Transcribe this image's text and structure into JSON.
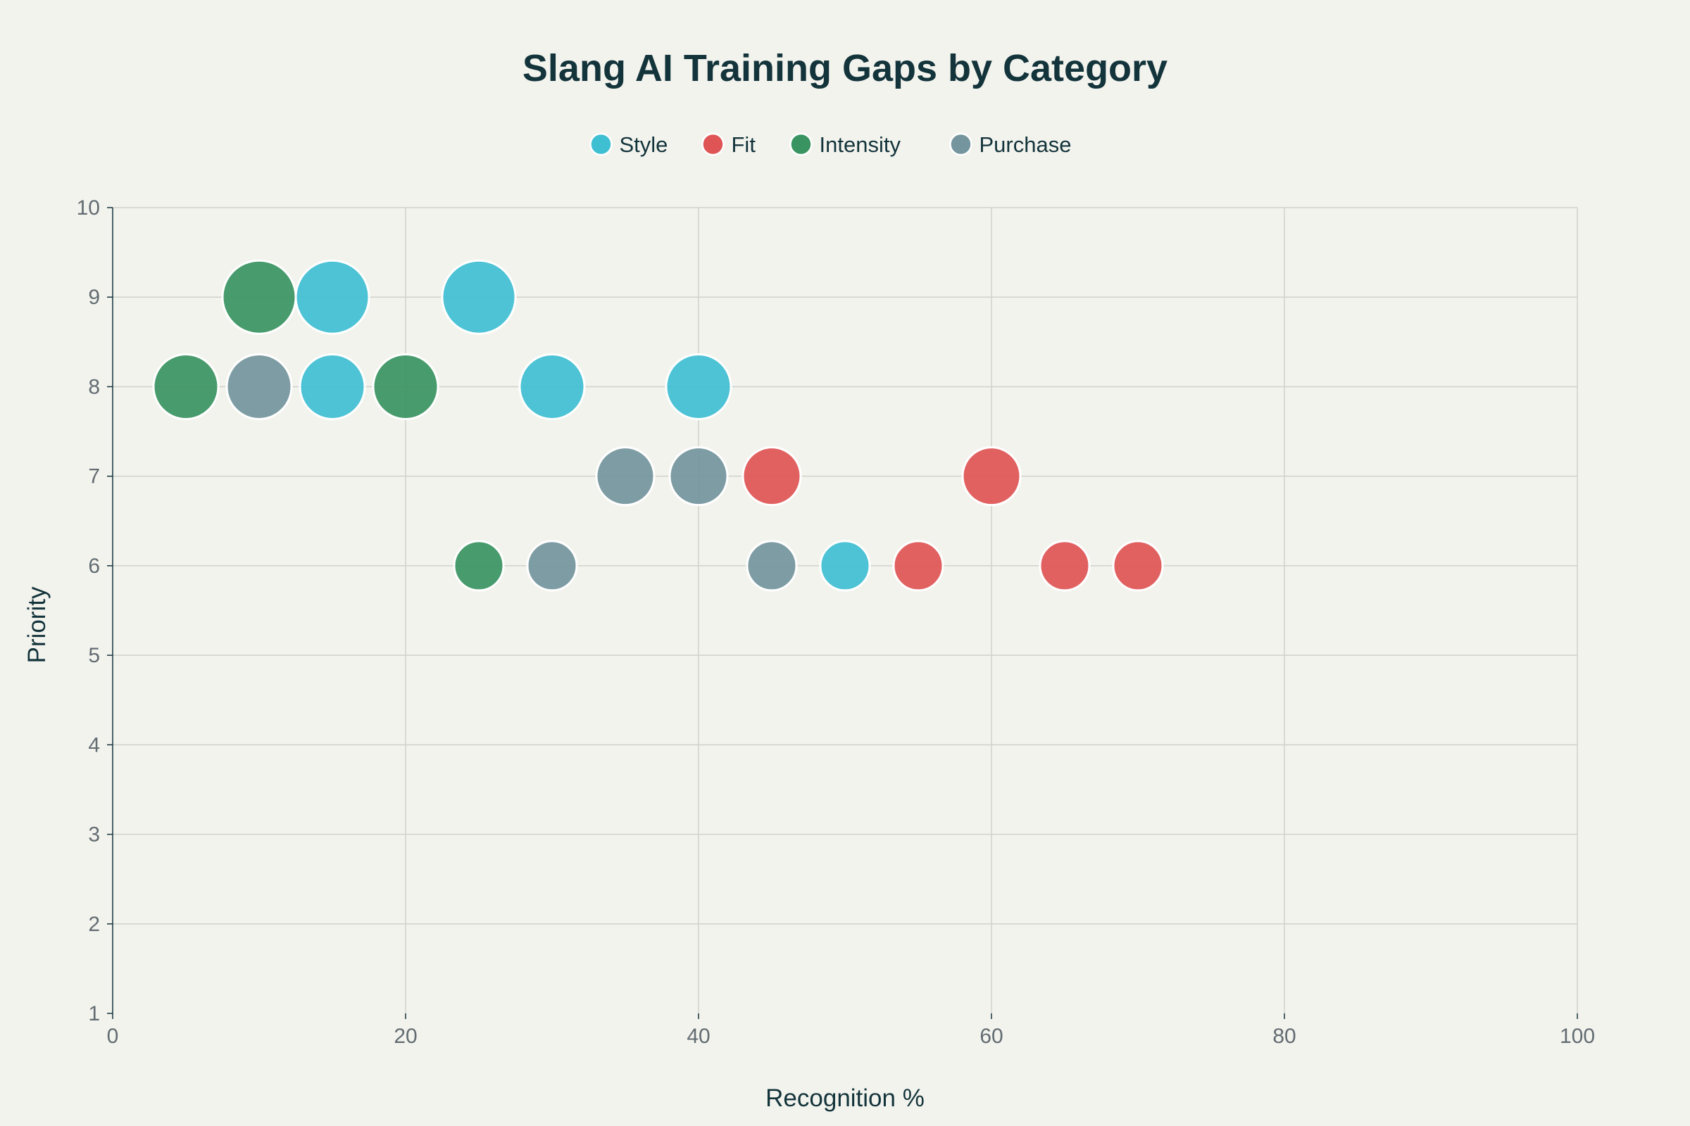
{
  "chart_data": {
    "type": "scatter",
    "title": "Slang AI Training Gaps by Category",
    "xlabel": "Recognition %",
    "ylabel": "Priority",
    "xlim": [
      0,
      100
    ],
    "ylim": [
      1,
      10
    ],
    "xticks": [
      0,
      20,
      40,
      60,
      80,
      100
    ],
    "yticks": [
      1,
      2,
      3,
      4,
      5,
      6,
      7,
      8,
      9,
      10
    ],
    "grid": true,
    "legend_position": "top-center",
    "series": [
      {
        "name": "Style",
        "color": "#3fbfd2",
        "points": [
          {
            "x": 15,
            "y": 9
          },
          {
            "x": 25,
            "y": 9
          },
          {
            "x": 15,
            "y": 8
          },
          {
            "x": 30,
            "y": 8
          },
          {
            "x": 40,
            "y": 8
          },
          {
            "x": 50,
            "y": 6
          }
        ]
      },
      {
        "name": "Fit",
        "color": "#df5555",
        "points": [
          {
            "x": 45,
            "y": 7
          },
          {
            "x": 60,
            "y": 7
          },
          {
            "x": 55,
            "y": 6
          },
          {
            "x": 65,
            "y": 6
          },
          {
            "x": 70,
            "y": 6
          }
        ]
      },
      {
        "name": "Intensity",
        "color": "#3a9461",
        "points": [
          {
            "x": 10,
            "y": 9
          },
          {
            "x": 5,
            "y": 8
          },
          {
            "x": 20,
            "y": 8
          },
          {
            "x": 25,
            "y": 6
          }
        ]
      },
      {
        "name": "Purchase",
        "color": "#74959d",
        "points": [
          {
            "x": 10,
            "y": 8
          },
          {
            "x": 35,
            "y": 7
          },
          {
            "x": 40,
            "y": 7
          },
          {
            "x": 30,
            "y": 6
          },
          {
            "x": 45,
            "y": 6
          }
        ]
      }
    ]
  }
}
